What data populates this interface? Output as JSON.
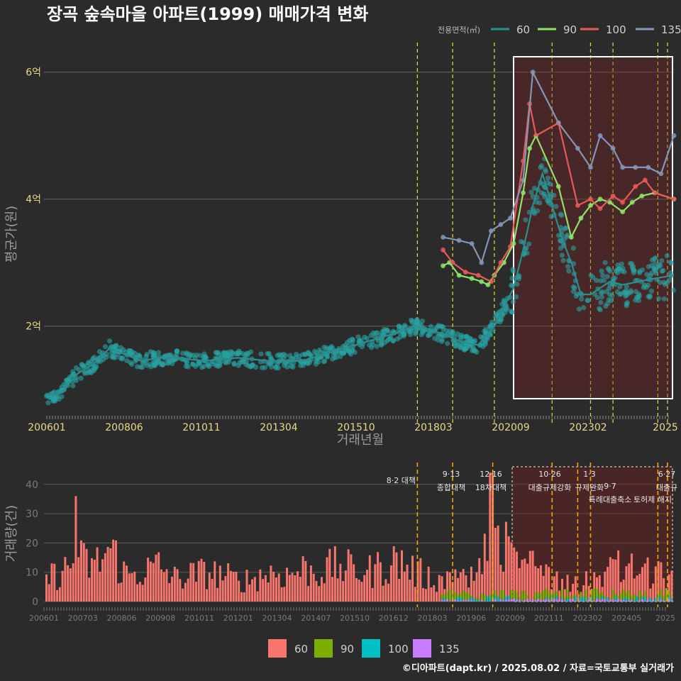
{
  "header": {
    "title": "장곡 숲속마을 아파트(1999) 매매가격 변화",
    "legend_title": "전용면적(㎡)",
    "credit": "©디아파트(dapt.kr) / 2025.08.02 / 자료=국토교통부 실거래가"
  },
  "colors": {
    "s60": "#2a8f8f",
    "s60_points": "#2aa2a2",
    "s90": "#8fe26a",
    "s100": "#e85a57",
    "s135": "#8496b8",
    "bar60": "#f8766d",
    "bar90": "#7cae00",
    "bar100": "#00bfc4",
    "bar135": "#c77cff",
    "vline": "#e0e040",
    "vline_bot": "#f0a800"
  },
  "chart_data": [
    {
      "type": "line",
      "ylabel": "평균가(원)",
      "xlabel": "거래년월",
      "x_ticks": [
        "200601",
        "200806",
        "201011",
        "201304",
        "201510",
        "201803",
        "202009",
        "202302",
        "2025"
      ],
      "y_ticks": [
        "2억",
        "4억",
        "6억"
      ],
      "y_tick_values": [
        2,
        4,
        6
      ],
      "ylim": [
        0.6,
        6.6
      ],
      "xlim": [
        2006.0,
        2025.6
      ],
      "legend": [
        "60",
        "90",
        "100",
        "135"
      ],
      "legend_position": "top-right",
      "series": [
        {
          "name": "60",
          "x": [
            2006.0,
            2006.5,
            2007.0,
            2007.5,
            2008.0,
            2008.5,
            2009.0,
            2009.5,
            2010.0,
            2011.0,
            2012.0,
            2013.0,
            2014.0,
            2015.0,
            2016.0,
            2017.0,
            2017.5,
            2018.0,
            2018.5,
            2019.0,
            2019.5,
            2020.0,
            2020.3,
            2020.6,
            2020.9,
            2021.2,
            2021.5,
            2021.8,
            2022.1,
            2022.4,
            2022.7,
            2023.0,
            2023.3,
            2023.6,
            2024.0,
            2024.5,
            2025.0,
            2025.6
          ],
          "y": [
            0.9,
            0.95,
            1.25,
            1.4,
            1.65,
            1.55,
            1.45,
            1.5,
            1.5,
            1.45,
            1.5,
            1.45,
            1.45,
            1.6,
            1.75,
            1.9,
            2.0,
            1.95,
            1.85,
            1.75,
            1.7,
            2.0,
            2.3,
            2.6,
            3.2,
            3.9,
            4.4,
            3.9,
            3.4,
            3.0,
            2.5,
            2.5,
            2.6,
            2.7,
            2.65,
            2.7,
            2.75,
            2.8
          ]
        },
        {
          "name": "90",
          "x": [
            2018.4,
            2018.6,
            2018.9,
            2019.3,
            2019.6,
            2019.8,
            2020.0,
            2020.3,
            2020.6,
            2020.9,
            2021.1,
            2021.3,
            2022.0,
            2022.4,
            2022.7,
            2023.0,
            2023.3,
            2023.6,
            2024.0,
            2024.3,
            2024.6,
            2025.0,
            2025.6
          ],
          "y": [
            2.95,
            3.0,
            2.8,
            2.75,
            2.7,
            2.65,
            2.8,
            3.0,
            3.3,
            4.1,
            4.8,
            5.0,
            4.2,
            3.4,
            3.7,
            3.9,
            4.0,
            3.95,
            3.8,
            3.95,
            4.05,
            4.1,
            4.0
          ]
        },
        {
          "name": "100",
          "x": [
            2018.4,
            2018.7,
            2019.1,
            2019.5,
            2019.9,
            2020.2,
            2020.5,
            2020.9,
            2021.1,
            2021.3,
            2022.0,
            2022.6,
            2023.0,
            2023.3,
            2023.7,
            2024.0,
            2024.4,
            2024.7,
            2025.0,
            2025.6
          ],
          "y": [
            3.2,
            3.0,
            2.85,
            2.8,
            2.7,
            3.0,
            3.25,
            4.6,
            5.5,
            5.0,
            5.2,
            3.9,
            4.0,
            3.85,
            4.05,
            3.95,
            4.2,
            4.3,
            4.1,
            4.0
          ]
        },
        {
          "name": "135",
          "x": [
            2018.4,
            2018.9,
            2019.3,
            2019.6,
            2019.9,
            2020.2,
            2020.5,
            2020.9,
            2021.2,
            2022.0,
            2022.6,
            2023.0,
            2023.3,
            2023.7,
            2024.0,
            2024.4,
            2024.8,
            2025.2,
            2025.6
          ],
          "y": [
            3.4,
            3.35,
            3.3,
            3.0,
            3.5,
            3.6,
            3.7,
            4.3,
            6.0,
            5.2,
            4.8,
            4.5,
            5.0,
            4.8,
            4.5,
            4.5,
            4.5,
            4.4,
            5.0
          ]
        }
      ],
      "vlines_x": [
        2017.6,
        2018.7,
        2020.0,
        2021.8,
        2023.0,
        2023.7,
        2025.1,
        2025.4
      ]
    },
    {
      "type": "bar",
      "ylabel": "거래량(건)",
      "x_ticks": [
        "200601",
        "200703",
        "200806",
        "200908",
        "201011",
        "201201",
        "201304",
        "201407",
        "201510",
        "201612",
        "201803",
        "201906",
        "202009",
        "202111",
        "202302",
        "202405",
        "2025"
      ],
      "y_ticks": [
        "0",
        "10",
        "20",
        "30",
        "40"
      ],
      "y_tick_values": [
        0,
        10,
        20,
        30,
        40
      ],
      "ylim": [
        0,
        46
      ],
      "xlim": [
        2006.0,
        2025.6
      ],
      "legend": [
        "60",
        "90",
        "100",
        "135"
      ],
      "legend_position": "bottom",
      "sample_months": [
        2006.0,
        2006.5,
        2007.0,
        2007.5,
        2008.0,
        2008.5,
        2009.0,
        2009.5,
        2010.0,
        2010.5,
        2011.0,
        2011.5,
        2012.0,
        2012.5,
        2013.0,
        2013.5,
        2014.0,
        2014.5,
        2015.0,
        2015.5,
        2016.0,
        2016.5,
        2017.0,
        2017.5,
        2018.0,
        2018.5,
        2019.0,
        2019.5,
        2019.8,
        2020.0,
        2020.3,
        2020.6,
        2021.0,
        2021.5,
        2022.0,
        2022.5,
        2023.0,
        2023.5,
        2024.0,
        2024.5,
        2025.0,
        2025.5
      ],
      "sample_values_60": [
        8,
        10,
        14,
        12,
        18,
        9,
        10,
        12,
        8,
        9,
        10,
        9,
        7,
        8,
        10,
        9,
        11,
        10,
        12,
        11,
        10,
        12,
        14,
        10,
        8,
        7,
        8,
        10,
        22,
        30,
        18,
        14,
        18,
        10,
        8,
        6,
        8,
        10,
        12,
        10,
        9,
        8
      ],
      "annotations": [
        {
          "top": "",
          "bottom": "8·2 대책"
        },
        {
          "top": "9·13",
          "bottom": "종합대책"
        },
        {
          "top": "12·16",
          "bottom": "18차대책"
        },
        {
          "top": "10·26",
          "bottom": "대출규제강화"
        },
        {
          "top": "1·3",
          "bottom": "규제완화"
        },
        {
          "top": "9·7",
          "bottom": "특례대출축소"
        },
        {
          "top": "",
          "bottom": "토허제 해지"
        },
        {
          "top": "6·27",
          "bottom": "대출규"
        }
      ],
      "vlines_x": [
        2017.6,
        2018.7,
        2019.95,
        2021.8,
        2022.6,
        2023.0,
        2025.1,
        2025.4
      ]
    }
  ]
}
